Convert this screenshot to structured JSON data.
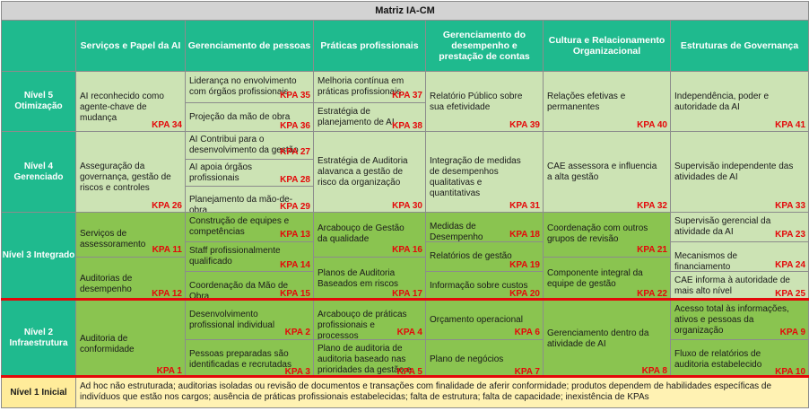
{
  "title": "Matriz IA-CM",
  "columns": [
    "Serviços e Papel da AI",
    "Gerenciamento de pessoas",
    "Práticas profissionais",
    "Gerenciamento do desempenho e prestação de contas",
    "Cultura e Relacionamento Organizacional",
    "Estruturas de Governança"
  ],
  "levels": {
    "n5": "Nível 5 Otimização",
    "n4": "Nível 4 Gerenciado",
    "n3": "Nível 3 Integrado",
    "n2": "Nível 2 Infraestrutura",
    "n1": "Nível 1 Inicial"
  },
  "cells": {
    "n5c1": {
      "items": [
        {
          "text": "AI reconhecido como agente-chave de mudança",
          "kpa": "KPA 34"
        }
      ]
    },
    "n5c2": {
      "items": [
        {
          "text": "Liderança no envolvimento com órgãos profissionais",
          "kpa": "KPA 35"
        },
        {
          "text": "Projeção da mão de obra",
          "kpa": "KPA 36"
        }
      ]
    },
    "n5c3": {
      "items": [
        {
          "text": "Melhoria contínua em práticas profissionais",
          "kpa": "KPA 37"
        },
        {
          "text": "Estratégia de planejamento de AI",
          "kpa": "KPA 38"
        }
      ]
    },
    "n5c4": {
      "items": [
        {
          "text": "Relatório Público sobre sua efetividade",
          "kpa": "KPA 39"
        }
      ]
    },
    "n5c5": {
      "items": [
        {
          "text": "Relações efetivas e permanentes",
          "kpa": "KPA 40"
        }
      ]
    },
    "n5c6": {
      "items": [
        {
          "text": "Independência, poder e autoridade da AI",
          "kpa": "KPA 41"
        }
      ]
    },
    "n4c1": {
      "items": [
        {
          "text": "Asseguração da governança, gestão de riscos e controles",
          "kpa": "KPA 26"
        }
      ]
    },
    "n4c2": {
      "items": [
        {
          "text": "AI Contribui para o desenvolvimento da gestão",
          "kpa": "KPA 27"
        },
        {
          "text": "AI apoia órgãos profissionais",
          "kpa": "KPA 28"
        },
        {
          "text": "Planejamento da mão-de-obra",
          "kpa": "KPA 29"
        }
      ]
    },
    "n4c3": {
      "items": [
        {
          "text": "Estratégia de Auditoria alavanca a gestão de risco da organização",
          "kpa": "KPA 30"
        }
      ]
    },
    "n4c4": {
      "items": [
        {
          "text": "Integração de medidas de desempenhos qualitativas e quantitativas",
          "kpa": "KPA 31"
        }
      ]
    },
    "n4c5": {
      "items": [
        {
          "text": "CAE assessora e influencia a alta gestão",
          "kpa": "KPA 32"
        }
      ]
    },
    "n4c6": {
      "items": [
        {
          "text": "Supervisão independente das atividades de AI",
          "kpa": "KPA 33"
        }
      ]
    },
    "n3c1": {
      "items": [
        {
          "text": "Serviços de assessoramento",
          "kpa": "KPA 11"
        },
        {
          "text": "Auditorias de desempenho",
          "kpa": "KPA 12"
        }
      ]
    },
    "n3c2": {
      "items": [
        {
          "text": "Construção de equipes e competências",
          "kpa": "KPA 13"
        },
        {
          "text": "Staff profissionalmente qualificado",
          "kpa": "KPA 14"
        },
        {
          "text": "Coordenação da Mão de Obra",
          "kpa": "KPA 15"
        }
      ]
    },
    "n3c3": {
      "items": [
        {
          "text": "Arcabouço de Gestão da qualidade",
          "kpa": "KPA 16"
        },
        {
          "text": "Planos de Auditoria Baseados em riscos",
          "kpa": "KPA 17"
        }
      ]
    },
    "n3c4": {
      "items": [
        {
          "text": "Medidas de Desempenho",
          "kpa": "KPA 18"
        },
        {
          "text": "Relatórios de gestão",
          "kpa": "KPA 19"
        },
        {
          "text": "Informação sobre custos",
          "kpa": "KPA 20"
        }
      ]
    },
    "n3c5": {
      "items": [
        {
          "text": "Coordenação com outros grupos de revisão",
          "kpa": "KPA 21"
        },
        {
          "text": "Componente integral da equipe de gestão",
          "kpa": "KPA 22"
        }
      ]
    },
    "n3c6": {
      "items": [
        {
          "text": "Supervisão gerencial da atividade da AI",
          "kpa": "KPA 23"
        },
        {
          "text": "Mecanismos de financiamento",
          "kpa": "KPA 24"
        },
        {
          "text": "CAE informa à autoridade de mais alto nível",
          "kpa": "KPA 25"
        }
      ]
    },
    "n2c1": {
      "items": [
        {
          "text": "Auditoria de conformidade",
          "kpa": "KPA 1"
        }
      ]
    },
    "n2c2": {
      "items": [
        {
          "text": "Desenvolvimento profissional individual",
          "kpa": "KPA 2"
        },
        {
          "text": "Pessoas preparadas são identificadas e recrutadas",
          "kpa": "KPA 3"
        }
      ]
    },
    "n2c3": {
      "items": [
        {
          "text": "Arcabouço de práticas profissionais e processos",
          "kpa": "KPA 4"
        },
        {
          "text": "Plano de auditoria de auditoria baseado nas prioridades da gestão e dos stakeholders",
          "kpa": "KPA 5"
        }
      ]
    },
    "n2c4": {
      "items": [
        {
          "text": "Orçamento operacional",
          "kpa": "KPA 6"
        },
        {
          "text": "Plano de negócios",
          "kpa": "KPA 7"
        }
      ]
    },
    "n2c5": {
      "items": [
        {
          "text": "Gerenciamento dentro da atividade de AI",
          "kpa": "KPA 8"
        }
      ]
    },
    "n2c6": {
      "items": [
        {
          "text": "Acesso total às informações, ativos e pessoas da organização",
          "kpa": "KPA 9"
        },
        {
          "text": "Fluxo de relatórios de auditoria estabelecido",
          "kpa": "KPA 10"
        }
      ]
    }
  },
  "n1_text": "Ad hoc não estruturada; auditorias isoladas ou revisão de documentos e transações com finalidade de aferir conformidade; produtos dependem de habilidades específicas de indivíduos que estão nos cargos; ausência de práticas profissionais estabelecidas; falta de estrutura; falta de capacidade; inexistência de KPAs"
}
